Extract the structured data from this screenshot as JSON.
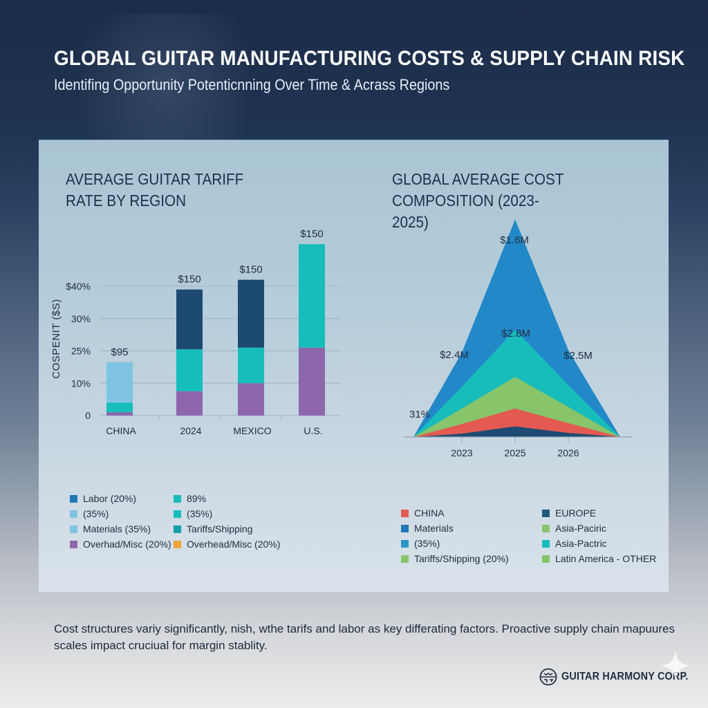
{
  "header": {
    "title": "GLOBAL GUITAR MANUFACTURING COSTS & SUPPLY CHAIN RISK",
    "subtitle": "Identifing Opportunity Potenticnning Over Time & Acrass Regions"
  },
  "chart_data": [
    {
      "type": "bar",
      "stacked": true,
      "title": "AVERAGE GUITAR TARIFF RATE BY REGION",
      "xlabel": "",
      "ylabel": "COSPENIT ($S)",
      "categories": [
        "CHINA",
        "2024",
        "MEXICO",
        "U.S."
      ],
      "y_tick_labels": [
        "0",
        "10%",
        "25%",
        "30%",
        "$40%"
      ],
      "y_tick_positions": [
        0,
        1,
        2,
        3,
        4
      ],
      "ylim": [
        0,
        4.2
      ],
      "grid": true,
      "series": [
        {
          "name": "Overhad/Misc (20%)",
          "color": "#8e66ad",
          "values": [
            0.1,
            0.75,
            1.0,
            2.1
          ]
        },
        {
          "name": "Tariffs/Shipping",
          "color": "#17bdbb",
          "values": [
            0.3,
            1.3,
            1.1,
            3.2
          ]
        },
        {
          "name": "Materials (35%)",
          "color": "#7ec4e2",
          "values": [
            1.25,
            0,
            0,
            0
          ]
        },
        {
          "name": "Labor (20%)",
          "color": "#1c4a72",
          "values": [
            0,
            1.85,
            2.1,
            0
          ]
        }
      ],
      "data_labels": [
        "$95",
        "$150",
        "$150",
        "$150"
      ],
      "legend": {
        "placement": "bottom",
        "items": [
          {
            "label": "Labor (20%)",
            "color": "#1f78b8"
          },
          {
            "label": "89%",
            "color": "#17bdbb"
          },
          {
            "label": "(35%)",
            "color": "#7ec4e2"
          },
          {
            "label": "(35%)",
            "color": "#17bdbb"
          },
          {
            "label": "Materials (35%)",
            "color": "#7ec4e2"
          },
          {
            "label": "Tariffs/Shipping",
            "color": "#159fa6"
          },
          {
            "label": "Overhad/Misc (20%)",
            "color": "#8e66ad"
          },
          {
            "label": "Overhead/Misc (20%)",
            "color": "#f2a33a"
          }
        ]
      }
    },
    {
      "type": "area",
      "stacked": true,
      "title": "GLOBAL AVERAGE COST COMPOSITION (2023-2025)",
      "xlabel": "",
      "ylabel": "",
      "x": [
        "start",
        "2023",
        "2025",
        "2026",
        "end"
      ],
      "x_tick_labels": [
        "2023",
        "2025",
        "2026"
      ],
      "series": [
        {
          "name": "EUROPE",
          "color": "#1c4a72",
          "values": [
            0,
            0.4,
            1.3,
            0.5,
            0
          ]
        },
        {
          "name": "CHINA",
          "color": "#e25a52",
          "values": [
            0,
            1.2,
            2.2,
            1.2,
            0
          ]
        },
        {
          "name": "Asia-Paciric",
          "color": "#87c46a",
          "values": [
            0,
            1.9,
            3.9,
            2.0,
            0
          ]
        },
        {
          "name": "Asia-Pactric",
          "color": "#17bdbb",
          "values": [
            0,
            2.7,
            5.8,
            2.7,
            0
          ]
        },
        {
          "name": "Materials",
          "color": "#2288c8",
          "values": [
            0,
            4.2,
            13.6,
            4.3,
            0
          ]
        }
      ],
      "annotations": [
        {
          "text": "$1.6M",
          "at": "2025-top"
        },
        {
          "text": "$2.8M",
          "at": "2025-mid"
        },
        {
          "text": "$2.4M",
          "at": "2023"
        },
        {
          "text": "$2.5M",
          "at": "2026"
        },
        {
          "text": "31%",
          "at": "start"
        }
      ],
      "legend": {
        "placement": "bottom",
        "items": [
          {
            "label": "CHINA",
            "color": "#e25a52"
          },
          {
            "label": "EUROPE",
            "color": "#1f5a78"
          },
          {
            "label": "Materials",
            "color": "#1f78b8"
          },
          {
            "label": "Asia-Paciric",
            "color": "#87c46a"
          },
          {
            "label": "(35%)",
            "color": "#2a95c8"
          },
          {
            "label": "Asia-Pactric",
            "color": "#17bdbb"
          },
          {
            "label": "Tariffs/Shipping (20%)",
            "color": "#87c46a"
          },
          {
            "label": "Latin America - OTHER",
            "color": "#87c46a"
          }
        ]
      }
    }
  ],
  "footer": {
    "text": "Cost structures variy significantly, nish, wthe tarifs and labor as key differating factors. Proactive supply chain mapuures scales impact cruciual for margin stablity.",
    "brand": "GUITAR HARMONY CORP."
  }
}
